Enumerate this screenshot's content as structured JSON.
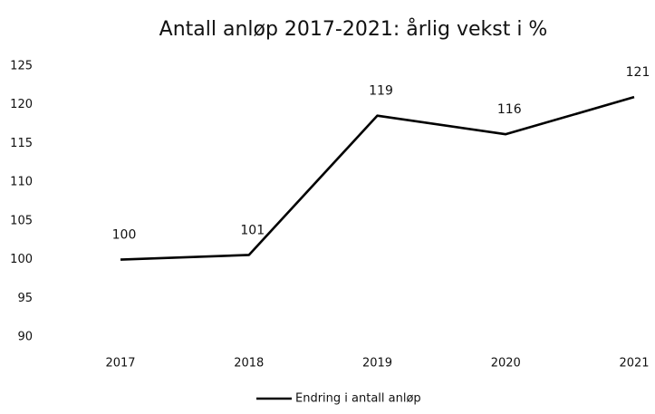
{
  "chart_data": {
    "type": "line",
    "title": "Antall anløp 2017-2021: årlig vekst i %",
    "categories": [
      "2017",
      "2018",
      "2019",
      "2020",
      "2021"
    ],
    "series": [
      {
        "name": "Endring i antall anløp",
        "color": "#000000",
        "values": [
          100,
          100.6,
          118.6,
          116.2,
          121
        ],
        "value_labels": [
          "100",
          "101",
          "119",
          "116",
          "121"
        ]
      }
    ],
    "ylim": [
      90,
      125
    ],
    "yticks": [
      90,
      95,
      100,
      105,
      110,
      115,
      120,
      125
    ],
    "grid": false,
    "legend": "bottom"
  }
}
